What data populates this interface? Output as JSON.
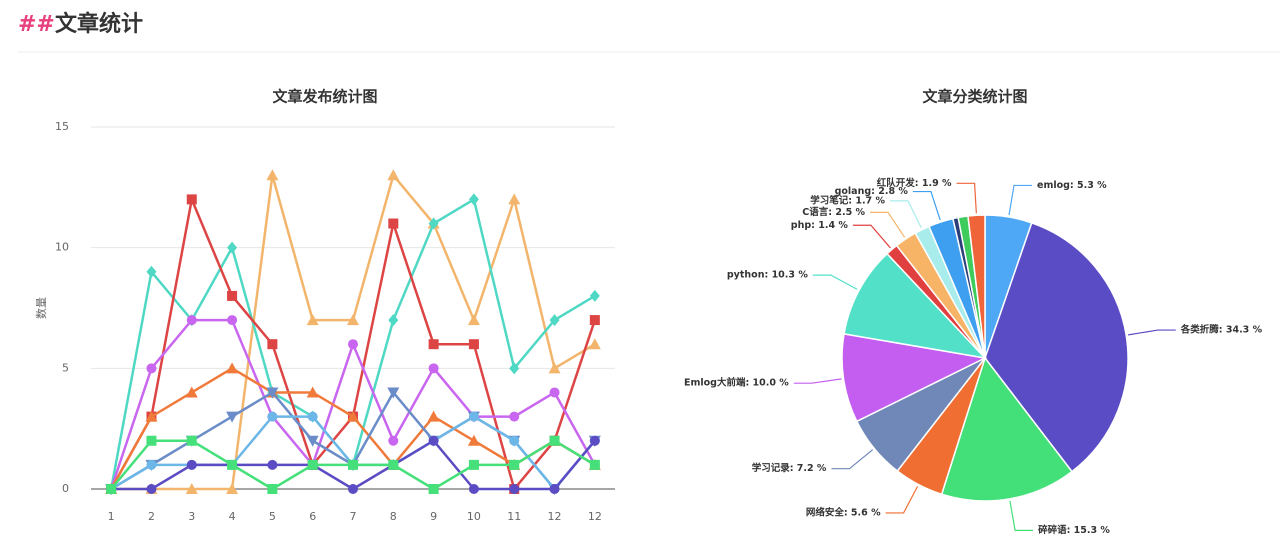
{
  "header": {
    "marker": "##",
    "title": "文章统计"
  },
  "chart_data": [
    {
      "type": "line",
      "title": "文章发布统计图",
      "y_label": "数量",
      "categories": [
        "1",
        "2",
        "3",
        "4",
        "5",
        "6",
        "7",
        "8",
        "9",
        "10",
        "11",
        "12",
        "12"
      ],
      "ylim": [
        0,
        15
      ],
      "yticks": [
        0,
        5,
        10,
        15
      ],
      "grid": true,
      "series": [
        {
          "color": "#f2b56b",
          "marker": "triangle",
          "values": [
            0,
            0,
            0,
            0,
            13,
            7,
            7,
            13,
            11,
            7,
            12,
            5,
            6
          ]
        },
        {
          "color": "#4fd8c4",
          "marker": "diamond",
          "values": [
            0,
            9,
            7,
            10,
            4,
            3,
            1,
            7,
            11,
            12,
            5,
            7,
            8
          ]
        },
        {
          "color": "#dd4444",
          "marker": "square",
          "values": [
            0,
            3,
            12,
            8,
            6,
            1,
            3,
            11,
            6,
            6,
            0,
            2,
            7
          ]
        },
        {
          "color": "#c966f0",
          "marker": "circle",
          "values": [
            0,
            5,
            7,
            7,
            3,
            1,
            6,
            2,
            5,
            3,
            3,
            4,
            1
          ]
        },
        {
          "color": "#f07a3a",
          "marker": "triangle",
          "values": [
            0,
            3,
            4,
            5,
            4,
            4,
            3,
            1,
            3,
            2,
            1,
            2,
            1
          ]
        },
        {
          "color": "#6a8cc8",
          "marker": "down-triangle",
          "values": [
            0,
            1,
            2,
            3,
            4,
            2,
            1,
            4,
            2,
            3,
            2,
            0,
            2
          ]
        },
        {
          "color": "#6cb6e8",
          "marker": "circle",
          "values": [
            0,
            1,
            1,
            1,
            3,
            3,
            1,
            1,
            2,
            3,
            2,
            0,
            2
          ]
        },
        {
          "color": "#5b4cc4",
          "marker": "circle",
          "values": [
            0,
            0,
            1,
            1,
            1,
            1,
            0,
            1,
            2,
            0,
            0,
            0,
            2
          ]
        },
        {
          "color": "#45e07a",
          "marker": "square",
          "values": [
            0,
            2,
            2,
            1,
            0,
            1,
            1,
            1,
            0,
            1,
            1,
            2,
            1
          ]
        }
      ]
    },
    {
      "type": "pie",
      "title": "文章分类统计图",
      "values": [
        5.3,
        34.3,
        15.3,
        5.6,
        7.2,
        10.0,
        10.3,
        1.4,
        2.5,
        1.7,
        2.8,
        0.6,
        1.1,
        1.9
      ],
      "value_labels": [
        "emlog: 5.3 %",
        "各类折腾: 34.3 %",
        "碎碎语: 15.3 %",
        "网络安全: 5.6 %",
        "学习记录: 7.2 %",
        "Emlog大前端: 10.0 %",
        "python: 10.3 %",
        "php: 1.4 %",
        "C语言: 2.5 %",
        "学习笔记: 1.7 %",
        "golang: 2.8 %",
        null,
        null,
        "红队开发: 1.9 %"
      ],
      "colors": [
        "#4ea8f5",
        "#5a4cc4",
        "#43e07a",
        "#f06e32",
        "#6f88b8",
        "#c45ef0",
        "#52e0c8",
        "#e04040",
        "#f8b466",
        "#a8ecec",
        "#3e9ef0",
        "#2a3f7a",
        "#3ecc5c",
        "#f0643a"
      ]
    }
  ]
}
